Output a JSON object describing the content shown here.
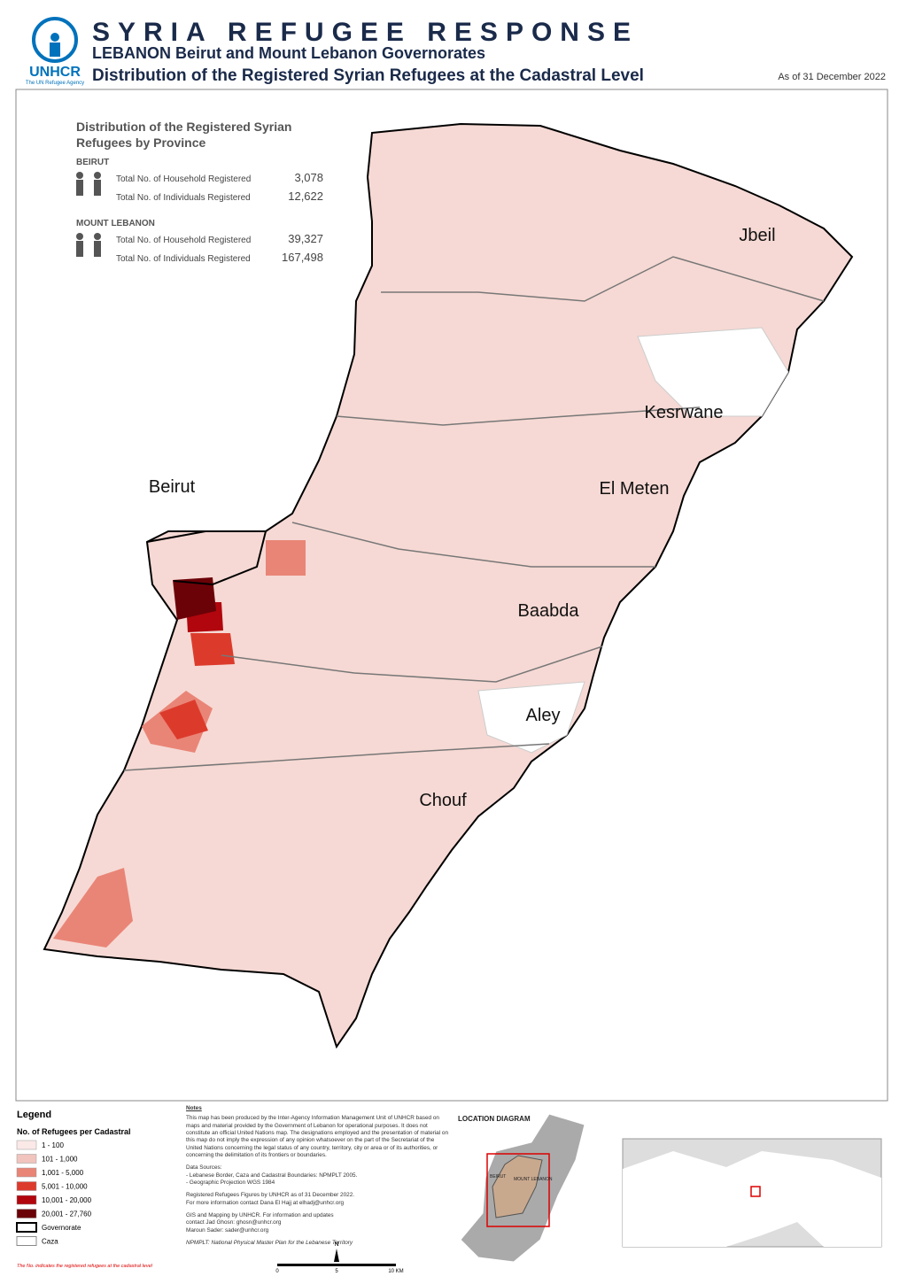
{
  "header": {
    "title": "SYRIA REFUGEE RESPONSE",
    "subtitle": "LEBANON  Beirut and Mount Lebanon Governorates",
    "heading": "Distribution of the Registered Syrian Refugees at the Cadastral Level",
    "date": "As of 31 December 2022",
    "logo": "UNHCR",
    "logo_tagline": "The UN Refugee Agency"
  },
  "summary": {
    "title": "Distribution of the Registered Syrian Refugees by Province",
    "provinces": [
      {
        "name": "BEIRUT",
        "rows": [
          {
            "label": "Total No. of Household Registered",
            "value": "3,078"
          },
          {
            "label": "Total No. of Individuals Registered",
            "value": "12,622"
          }
        ]
      },
      {
        "name": "MOUNT LEBANON",
        "rows": [
          {
            "label": "Total No. of Household Registered",
            "value": "39,327"
          },
          {
            "label": "Total No. of Individuals Registered",
            "value": "167,498"
          }
        ]
      }
    ]
  },
  "map": {
    "labels": [
      "Jbeil",
      "Kesrwane",
      "El Meten",
      "Baabda",
      "Aley",
      "Chouf",
      "Beirut"
    ]
  },
  "legend": {
    "title": "Legend",
    "subtitle": "No. of Refugees per Cadastral",
    "items": [
      {
        "label": "1 - 100",
        "color": "#fbe9e7"
      },
      {
        "label": "101 - 1,000",
        "color": "#f1c4bd"
      },
      {
        "label": "1,001 - 5,000",
        "color": "#e98577"
      },
      {
        "label": "5,001 - 10,000",
        "color": "#dc3b2c"
      },
      {
        "label": "10,001 - 20,000",
        "color": "#b1060d"
      },
      {
        "label": "20,001 - 27,760",
        "color": "#6b0208"
      }
    ],
    "boundaries": [
      "Governorate",
      "Caza"
    ],
    "footnote": "The No. indicates the registered refugees at the cadastral level"
  },
  "notes": {
    "title": "Notes",
    "paragraphs": [
      "This map has been produced by the Inter-Agency Information Management Unit of UNHCR based on maps and material provided by the Government of Lebanon for operational purposes. It does not constitute an official United Nations map. The designations employed and the presentation of material on this map do not imply the expression of any opinion whatsoever on the part of the Secretariat of the United Nations concerning the legal status of any country, territory, city or area or of its authorities, or concerning the delimitation of its frontiers or boundaries.",
      "Data Sources:\n- Lebanese Border, Caza and Cadastral Boundaries: NPMPLT 2005.\n- Geographic Projection WGS 1984",
      "Registered Refugees Figures by UNHCR as of 31 December 2022.\nFor more information contact Dana El Hajj at elhadj@unhcr.org",
      "GIS and Mapping by UNHCR. For information and updates\ncontact Jad Ghosn: ghosn@unhcr.org\nMaroun Sader: sader@unhcr.org",
      "NPMPLT: National Physical Master Plan for the Lebanese Territory"
    ]
  },
  "location": {
    "title": "LOCATION DIAGRAM",
    "labels": [
      "BEIRUT",
      "MOUNT LEBANON"
    ]
  },
  "scale": {
    "north": "N",
    "ticks": [
      "0",
      "5",
      "10 KM"
    ]
  }
}
